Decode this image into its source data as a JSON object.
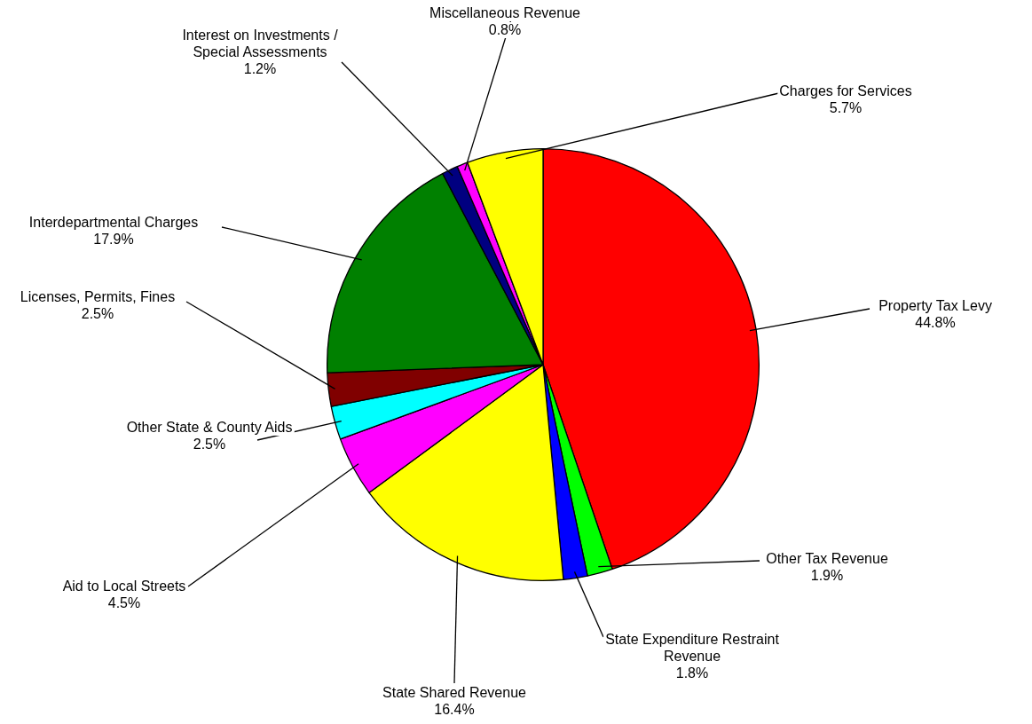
{
  "chart_data": {
    "type": "pie",
    "categories": [
      "Property Tax Levy",
      "Other Tax Revenue",
      "State Expenditure Restraint Revenue",
      "State Shared Revenue",
      "Aid to Local Streets",
      "Other State & County Aids",
      "Licenses, Permits, Fines",
      "Interdepartmental Charges",
      "Interest on Investments / Special Assessments",
      "Miscellaneous Revenue",
      "Charges for Services"
    ],
    "values": [
      44.8,
      1.9,
      1.8,
      16.4,
      4.5,
      2.5,
      2.5,
      17.9,
      1.2,
      0.8,
      5.7
    ],
    "colors": [
      "#ff0000",
      "#00ff00",
      "#0000ff",
      "#ffff00",
      "#ff00ff",
      "#00ffff",
      "#800000",
      "#008000",
      "#000080",
      "#ff00ff",
      "#ffff00"
    ],
    "value_labels": [
      "44.8%",
      "1.9%",
      "1.8%",
      "16.4%",
      "4.5%",
      "2.5%",
      "2.5%",
      "17.9%",
      "1.2%",
      "0.8%",
      "5.7%"
    ],
    "legend": false
  }
}
